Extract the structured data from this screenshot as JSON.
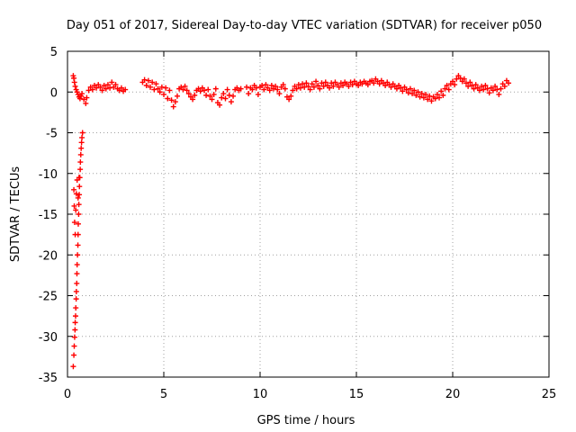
{
  "chart_data": {
    "type": "scatter",
    "title": "Day 051 of 2017, Sidereal Day-to-day VTEC variation (SDTVAR) for receiver p050",
    "xlabel": "GPS time / hours",
    "ylabel": "SDTVAR / TECUs",
    "xlim": [
      0,
      25
    ],
    "ylim": [
      -35,
      5
    ],
    "xticks": [
      0,
      5,
      10,
      15,
      20,
      25
    ],
    "yticks": [
      5,
      0,
      -5,
      -10,
      -15,
      -20,
      -25,
      -30,
      -35
    ],
    "grid": true,
    "legend": "none",
    "marker": "+",
    "colors": {
      "series": "#ff0000",
      "grid": "#a0a0a0",
      "axis": "#000000"
    },
    "series": [
      {
        "name": "receiver p050",
        "points": [
          [
            0.3,
            -33.7
          ],
          [
            0.33,
            -32.3
          ],
          [
            0.35,
            -31.2
          ],
          [
            0.37,
            -30.1
          ],
          [
            0.39,
            -29.2
          ],
          [
            0.4,
            -28.3
          ],
          [
            0.42,
            -27.5
          ],
          [
            0.43,
            -26.5
          ],
          [
            0.45,
            -25.4
          ],
          [
            0.46,
            -24.5
          ],
          [
            0.48,
            -23.5
          ],
          [
            0.49,
            -22.3
          ],
          [
            0.5,
            -21.2
          ],
          [
            0.52,
            -20.0
          ],
          [
            0.54,
            -18.8
          ],
          [
            0.55,
            -17.5
          ],
          [
            0.56,
            -16.2
          ],
          [
            0.58,
            -15.0
          ],
          [
            0.59,
            -13.8
          ],
          [
            0.61,
            -12.6
          ],
          [
            0.62,
            -11.6
          ],
          [
            0.64,
            -10.5
          ],
          [
            0.66,
            -9.5
          ],
          [
            0.67,
            -8.6
          ],
          [
            0.69,
            -7.7
          ],
          [
            0.71,
            -6.9
          ],
          [
            0.73,
            -6.2
          ],
          [
            0.75,
            -5.6
          ],
          [
            0.78,
            -5.0
          ],
          [
            0.33,
            -12.0
          ],
          [
            0.35,
            -14.0
          ],
          [
            0.37,
            -16.0
          ],
          [
            0.4,
            -17.5
          ],
          [
            0.43,
            -14.5
          ],
          [
            0.46,
            -12.5
          ],
          [
            0.5,
            -10.8
          ],
          [
            0.55,
            -13.0
          ],
          [
            0.6,
            -10.5
          ],
          [
            0.3,
            2.0
          ],
          [
            0.33,
            1.7
          ],
          [
            0.36,
            1.2
          ],
          [
            0.4,
            0.7
          ],
          [
            0.45,
            0.3
          ],
          [
            0.5,
            0.0
          ],
          [
            0.55,
            -0.3
          ],
          [
            0.6,
            -0.6
          ],
          [
            0.65,
            -0.8
          ],
          [
            0.7,
            -0.5
          ],
          [
            0.75,
            -0.2
          ],
          [
            0.85,
            -0.9
          ],
          [
            0.95,
            -1.4
          ],
          [
            1.0,
            -0.7
          ],
          [
            1.1,
            0.2
          ],
          [
            1.2,
            0.6
          ],
          [
            1.3,
            0.3
          ],
          [
            1.4,
            0.8
          ],
          [
            1.5,
            0.5
          ],
          [
            1.6,
            0.9
          ],
          [
            1.7,
            0.6
          ],
          [
            1.8,
            0.2
          ],
          [
            1.9,
            0.8
          ],
          [
            2.0,
            0.4
          ],
          [
            2.1,
            0.9
          ],
          [
            2.2,
            0.5
          ],
          [
            2.3,
            1.2
          ],
          [
            2.4,
            0.6
          ],
          [
            2.5,
            0.9
          ],
          [
            2.6,
            0.4
          ],
          [
            2.7,
            0.2
          ],
          [
            2.8,
            0.5
          ],
          [
            2.9,
            0.1
          ],
          [
            3.0,
            0.3
          ],
          [
            3.9,
            1.2
          ],
          [
            4.0,
            1.5
          ],
          [
            4.1,
            0.8
          ],
          [
            4.2,
            1.4
          ],
          [
            4.3,
            0.6
          ],
          [
            4.4,
            1.2
          ],
          [
            4.5,
            0.3
          ],
          [
            4.6,
            1.0
          ],
          [
            4.7,
            0.4
          ],
          [
            4.8,
            0.0
          ],
          [
            4.9,
            0.6
          ],
          [
            5.0,
            -0.3
          ],
          [
            5.1,
            0.5
          ],
          [
            5.2,
            -0.8
          ],
          [
            5.3,
            0.2
          ],
          [
            5.4,
            -1.0
          ],
          [
            5.5,
            -1.8
          ],
          [
            5.6,
            -1.2
          ],
          [
            5.7,
            -0.5
          ],
          [
            5.8,
            0.4
          ],
          [
            5.9,
            0.6
          ],
          [
            6.0,
            0.3
          ],
          [
            6.1,
            0.7
          ],
          [
            6.2,
            0.2
          ],
          [
            6.3,
            -0.2
          ],
          [
            6.4,
            -0.6
          ],
          [
            6.5,
            -0.9
          ],
          [
            6.6,
            -0.4
          ],
          [
            6.7,
            0.2
          ],
          [
            6.8,
            0.4
          ],
          [
            6.9,
            0.1
          ],
          [
            7.0,
            0.5
          ],
          [
            7.1,
            0.2
          ],
          [
            7.2,
            -0.4
          ],
          [
            7.3,
            0.3
          ],
          [
            7.4,
            -0.5
          ],
          [
            7.5,
            -0.9
          ],
          [
            7.6,
            -0.3
          ],
          [
            7.7,
            0.4
          ],
          [
            7.8,
            -1.3
          ],
          [
            7.9,
            -1.6
          ],
          [
            8.0,
            -0.7
          ],
          [
            8.1,
            -0.2
          ],
          [
            8.2,
            -0.8
          ],
          [
            8.3,
            0.3
          ],
          [
            8.4,
            -0.4
          ],
          [
            8.5,
            -1.2
          ],
          [
            8.6,
            -0.5
          ],
          [
            8.7,
            0.3
          ],
          [
            8.8,
            0.5
          ],
          [
            8.9,
            0.2
          ],
          [
            9.0,
            0.4
          ],
          [
            9.3,
            0.6
          ],
          [
            9.4,
            -0.2
          ],
          [
            9.5,
            0.5
          ],
          [
            9.6,
            0.3
          ],
          [
            9.7,
            0.8
          ],
          [
            9.8,
            0.5
          ],
          [
            9.9,
            -0.3
          ],
          [
            10.0,
            0.6
          ],
          [
            10.1,
            0.8
          ],
          [
            10.2,
            0.3
          ],
          [
            10.3,
            0.9
          ],
          [
            10.4,
            0.5
          ],
          [
            10.5,
            0.2
          ],
          [
            10.6,
            0.8
          ],
          [
            10.7,
            0.4
          ],
          [
            10.8,
            0.7
          ],
          [
            10.9,
            0.3
          ],
          [
            11.0,
            -0.2
          ],
          [
            11.1,
            0.6
          ],
          [
            11.2,
            0.9
          ],
          [
            11.3,
            0.4
          ],
          [
            11.4,
            -0.6
          ],
          [
            11.5,
            -0.9
          ],
          [
            11.6,
            -0.5
          ],
          [
            11.7,
            0.2
          ],
          [
            11.8,
            0.7
          ],
          [
            11.9,
            0.4
          ],
          [
            12.0,
            0.9
          ],
          [
            12.1,
            0.5
          ],
          [
            12.2,
            1.0
          ],
          [
            12.3,
            0.6
          ],
          [
            12.4,
            1.1
          ],
          [
            12.5,
            0.7
          ],
          [
            12.6,
            0.3
          ],
          [
            12.7,
            1.0
          ],
          [
            12.8,
            0.6
          ],
          [
            12.9,
            1.3
          ],
          [
            13.0,
            0.8
          ],
          [
            13.1,
            0.4
          ],
          [
            13.2,
            1.1
          ],
          [
            13.3,
            0.7
          ],
          [
            13.4,
            1.2
          ],
          [
            13.5,
            0.8
          ],
          [
            13.6,
            0.5
          ],
          [
            13.7,
            1.1
          ],
          [
            13.8,
            0.7
          ],
          [
            13.9,
            1.2
          ],
          [
            14.0,
            0.9
          ],
          [
            14.1,
            0.6
          ],
          [
            14.2,
            1.1
          ],
          [
            14.3,
            0.8
          ],
          [
            14.4,
            1.2
          ],
          [
            14.5,
            1.0
          ],
          [
            14.6,
            0.7
          ],
          [
            14.7,
            1.2
          ],
          [
            14.8,
            0.9
          ],
          [
            14.9,
            1.3
          ],
          [
            15.0,
            1.0
          ],
          [
            15.1,
            0.8
          ],
          [
            15.2,
            1.2
          ],
          [
            15.3,
            1.0
          ],
          [
            15.4,
            1.3
          ],
          [
            15.5,
            1.1
          ],
          [
            15.6,
            0.9
          ],
          [
            15.7,
            1.3
          ],
          [
            15.8,
            1.4
          ],
          [
            15.9,
            1.1
          ],
          [
            16.0,
            1.6
          ],
          [
            16.1,
            1.3
          ],
          [
            16.2,
            1.0
          ],
          [
            16.3,
            1.4
          ],
          [
            16.4,
            1.1
          ],
          [
            16.5,
            0.8
          ],
          [
            16.6,
            1.2
          ],
          [
            16.7,
            0.9
          ],
          [
            16.8,
            0.6
          ],
          [
            16.9,
            1.0
          ],
          [
            17.0,
            0.7
          ],
          [
            17.1,
            0.4
          ],
          [
            17.2,
            0.8
          ],
          [
            17.3,
            0.5
          ],
          [
            17.4,
            0.1
          ],
          [
            17.5,
            0.6
          ],
          [
            17.6,
            0.3
          ],
          [
            17.7,
            -0.1
          ],
          [
            17.8,
            0.4
          ],
          [
            17.9,
            -0.2
          ],
          [
            18.0,
            0.2
          ],
          [
            18.1,
            -0.4
          ],
          [
            18.2,
            0.0
          ],
          [
            18.3,
            -0.6
          ],
          [
            18.4,
            -0.2
          ],
          [
            18.5,
            -0.7
          ],
          [
            18.6,
            -0.3
          ],
          [
            18.7,
            -0.9
          ],
          [
            18.8,
            -0.5
          ],
          [
            18.9,
            -1.1
          ],
          [
            19.0,
            -0.6
          ],
          [
            19.1,
            -0.8
          ],
          [
            19.2,
            -0.3
          ],
          [
            19.3,
            -0.7
          ],
          [
            19.4,
            0.1
          ],
          [
            19.5,
            -0.4
          ],
          [
            19.6,
            0.4
          ],
          [
            19.7,
            0.8
          ],
          [
            19.8,
            0.3
          ],
          [
            19.9,
            1.0
          ],
          [
            20.0,
            1.3
          ],
          [
            20.1,
            0.9
          ],
          [
            20.2,
            1.6
          ],
          [
            20.3,
            2.0
          ],
          [
            20.4,
            1.7
          ],
          [
            20.5,
            1.3
          ],
          [
            20.6,
            1.6
          ],
          [
            20.7,
            1.1
          ],
          [
            20.8,
            0.7
          ],
          [
            20.9,
            1.2
          ],
          [
            21.0,
            0.8
          ],
          [
            21.1,
            0.4
          ],
          [
            21.2,
            0.9
          ],
          [
            21.3,
            0.5
          ],
          [
            21.4,
            0.2
          ],
          [
            21.5,
            0.7
          ],
          [
            21.6,
            0.3
          ],
          [
            21.7,
            0.8
          ],
          [
            21.8,
            0.4
          ],
          [
            21.9,
            -0.1
          ],
          [
            22.0,
            0.5
          ],
          [
            22.1,
            0.2
          ],
          [
            22.2,
            0.7
          ],
          [
            22.3,
            0.3
          ],
          [
            22.4,
            -0.3
          ],
          [
            22.5,
            0.4
          ],
          [
            22.6,
            1.0
          ],
          [
            22.7,
            0.7
          ],
          [
            22.8,
            1.4
          ],
          [
            22.9,
            1.1
          ]
        ]
      }
    ]
  }
}
